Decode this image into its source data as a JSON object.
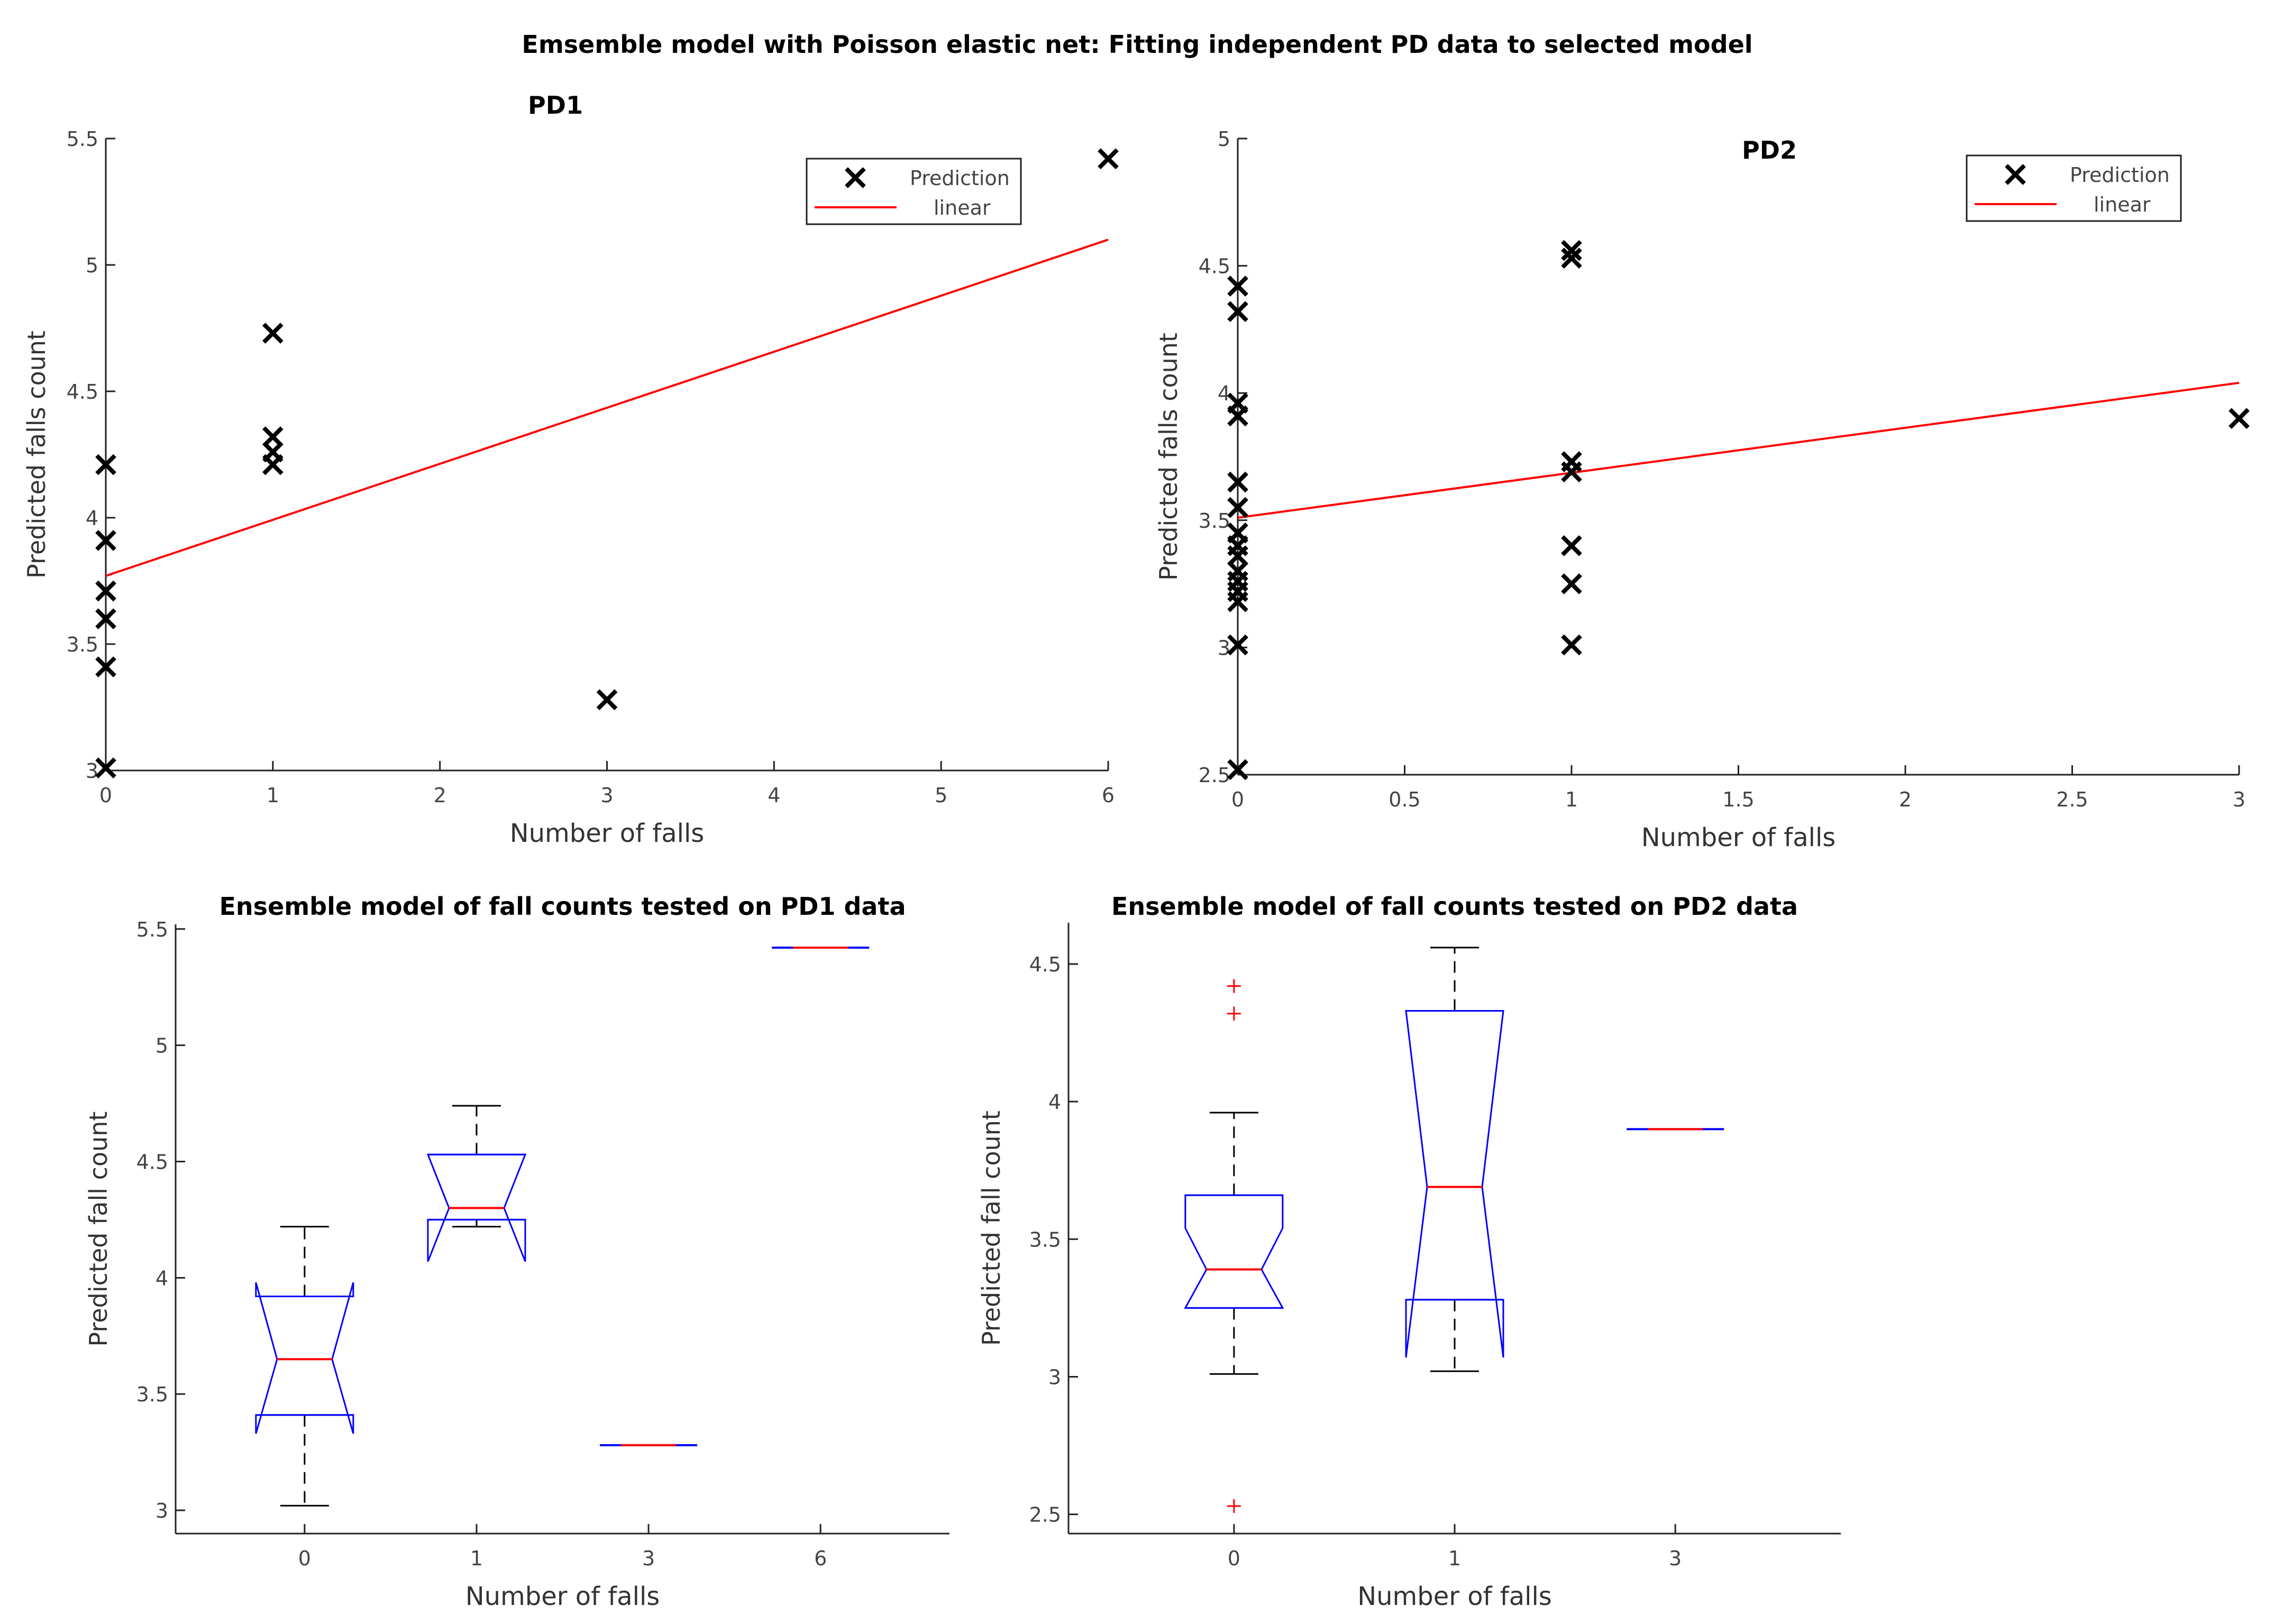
{
  "figure": {
    "title": "Emsemble model with Poisson elastic net: Fitting independent PD data to selected model"
  },
  "chart_data": [
    {
      "type": "scatter",
      "title": "PD1",
      "xlabel": "Number of falls",
      "ylabel": "Predicted falls count",
      "xlim": [
        0,
        6
      ],
      "ylim": [
        3,
        5.5
      ],
      "xticks": [
        0,
        1,
        2,
        3,
        4,
        5,
        6
      ],
      "yticks": [
        3,
        3.5,
        4,
        4.5,
        5,
        5.5
      ],
      "legend": {
        "position": "top-right",
        "entries": [
          "Prediction",
          "linear"
        ]
      },
      "series": [
        {
          "name": "Prediction",
          "points": [
            [
              0,
              3.01
            ],
            [
              0,
              3.41
            ],
            [
              0,
              3.6
            ],
            [
              0,
              3.71
            ],
            [
              0,
              3.91
            ],
            [
              0,
              4.21
            ],
            [
              1,
              4.21
            ],
            [
              1,
              4.26
            ],
            [
              1,
              4.32
            ],
            [
              1,
              4.73
            ],
            [
              3,
              3.28
            ],
            [
              6,
              5.42
            ]
          ]
        },
        {
          "name": "linear",
          "line": [
            [
              0,
              3.77
            ],
            [
              6,
              5.1
            ]
          ]
        }
      ]
    },
    {
      "type": "scatter",
      "title": "PD2",
      "xlabel": "Number of falls",
      "ylabel": "Predicted falls count",
      "xlim": [
        0,
        3
      ],
      "ylim": [
        2.5,
        5
      ],
      "xticks": [
        0,
        0.5,
        1,
        1.5,
        2,
        2.5,
        3
      ],
      "yticks": [
        2.5,
        3,
        3.5,
        4,
        4.5,
        5
      ],
      "legend": {
        "position": "top-right",
        "entries": [
          "Prediction",
          "linear"
        ]
      },
      "series": [
        {
          "name": "Prediction",
          "points": [
            [
              0,
              2.52
            ],
            [
              0,
              3.01
            ],
            [
              0,
              3.18
            ],
            [
              0,
              3.22
            ],
            [
              0,
              3.26
            ],
            [
              0,
              3.3
            ],
            [
              0,
              3.36
            ],
            [
              0,
              3.4
            ],
            [
              0,
              3.45
            ],
            [
              0,
              3.55
            ],
            [
              0,
              3.65
            ],
            [
              0,
              3.91
            ],
            [
              0,
              3.96
            ],
            [
              0,
              4.32
            ],
            [
              0,
              4.42
            ],
            [
              1,
              3.01
            ],
            [
              1,
              3.25
            ],
            [
              1,
              3.4
            ],
            [
              1,
              3.69
            ],
            [
              1,
              3.73
            ],
            [
              1,
              4.53
            ],
            [
              1,
              4.56
            ],
            [
              3,
              3.9
            ]
          ]
        },
        {
          "name": "linear",
          "line": [
            [
              0,
              3.51
            ],
            [
              3,
              4.04
            ]
          ]
        }
      ]
    },
    {
      "type": "box",
      "title": "Ensemble model of fall counts tested on PD1 data",
      "xlabel": "Number of falls",
      "ylabel": "Predicted fall count",
      "ylim": [
        2.9,
        5.52
      ],
      "yticks": [
        3,
        3.5,
        4,
        4.5,
        5,
        5.5
      ],
      "categories": [
        "0",
        "1",
        "3",
        "6"
      ],
      "boxes": [
        {
          "q1": 3.41,
          "median": 3.65,
          "q3": 3.92,
          "whisker_low": 3.02,
          "whisker_high": 4.22,
          "notch_low": 3.33,
          "notch_high": 3.98,
          "outliers": []
        },
        {
          "q1": 4.25,
          "median": 4.3,
          "q3": 4.53,
          "whisker_low": 4.22,
          "whisker_high": 4.74,
          "notch_low": 4.07,
          "notch_high": 4.53,
          "outliers": []
        },
        {
          "q1": 3.28,
          "median": 3.28,
          "q3": 3.28,
          "whisker_low": 3.28,
          "whisker_high": 3.28,
          "notch_low": 3.28,
          "notch_high": 3.28,
          "outliers": []
        },
        {
          "q1": 5.42,
          "median": 5.42,
          "q3": 5.42,
          "whisker_low": 5.42,
          "whisker_high": 5.42,
          "notch_low": 5.42,
          "notch_high": 5.42,
          "outliers": []
        }
      ]
    },
    {
      "type": "box",
      "title": "Ensemble model of fall counts tested on PD2 data",
      "xlabel": "Number of falls",
      "ylabel": "Predicted fall count",
      "ylim": [
        2.43,
        4.65
      ],
      "yticks": [
        2.5,
        3,
        3.5,
        4,
        4.5
      ],
      "categories": [
        "0",
        "1",
        "3"
      ],
      "boxes": [
        {
          "q1": 3.25,
          "median": 3.39,
          "q3": 3.66,
          "whisker_low": 3.01,
          "whisker_high": 3.96,
          "notch_low": 3.25,
          "notch_high": 3.54,
          "outliers": [
            4.42,
            4.32,
            2.53
          ]
        },
        {
          "q1": 3.28,
          "median": 3.69,
          "q3": 4.33,
          "whisker_low": 3.02,
          "whisker_high": 4.56,
          "notch_low": 3.07,
          "notch_high": 4.33,
          "outliers": []
        },
        {
          "q1": 3.9,
          "median": 3.9,
          "q3": 3.9,
          "whisker_low": 3.9,
          "whisker_high": 3.9,
          "notch_low": 3.9,
          "notch_high": 3.9,
          "outliers": []
        }
      ]
    }
  ],
  "colors": {
    "marker": "#000000",
    "fit_line": "#ff0000",
    "box": "#0000ff",
    "median": "#ff0000",
    "whisker": "#000000",
    "outlier": "#ff0000"
  }
}
